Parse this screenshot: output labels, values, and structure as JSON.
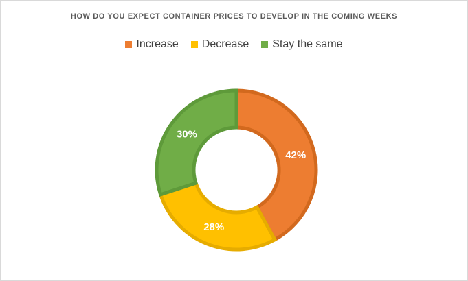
{
  "chart_data": {
    "type": "pie",
    "title": "HOW DO YOU EXPECT CONTAINER PRICES TO DEVELOP IN THE COMING WEEKS",
    "legend_position": "top",
    "categories": [
      "Increase",
      "Decrease",
      "Stay the same"
    ],
    "values": [
      42,
      28,
      30
    ],
    "labels": [
      "42%",
      "28%",
      "30%"
    ],
    "colors": [
      "#ED7D31",
      "#FFC000",
      "#70AD47"
    ],
    "border_colors": [
      "#D2691E",
      "#E6AC00",
      "#5E9A3A"
    ]
  }
}
